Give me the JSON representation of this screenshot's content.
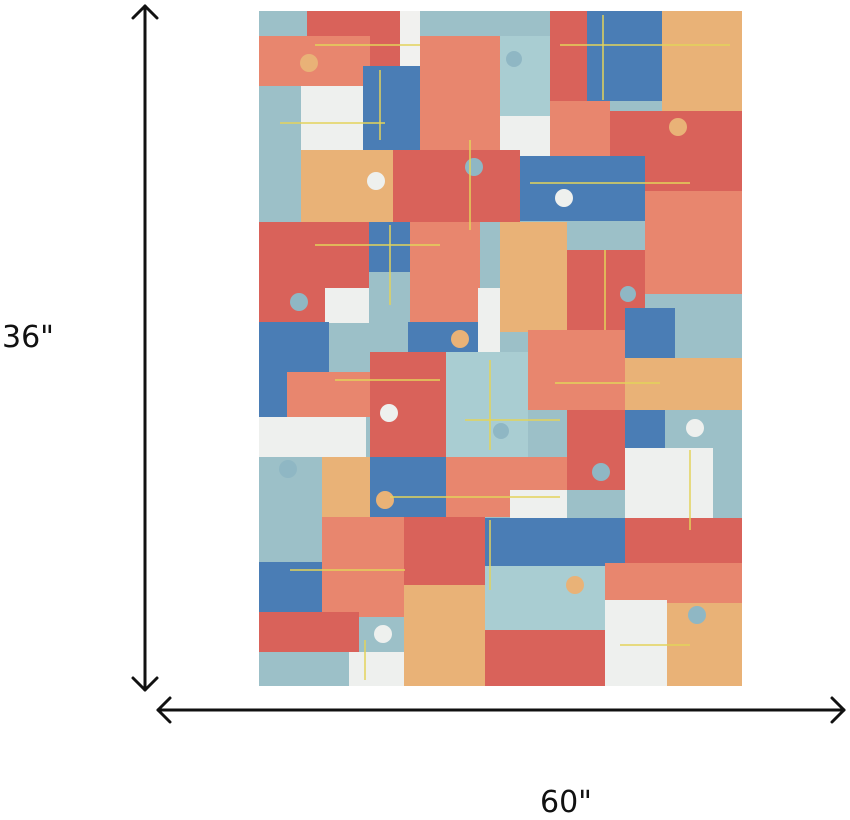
{
  "dimensions": {
    "height_label": "36\"",
    "width_label": "60\""
  }
}
